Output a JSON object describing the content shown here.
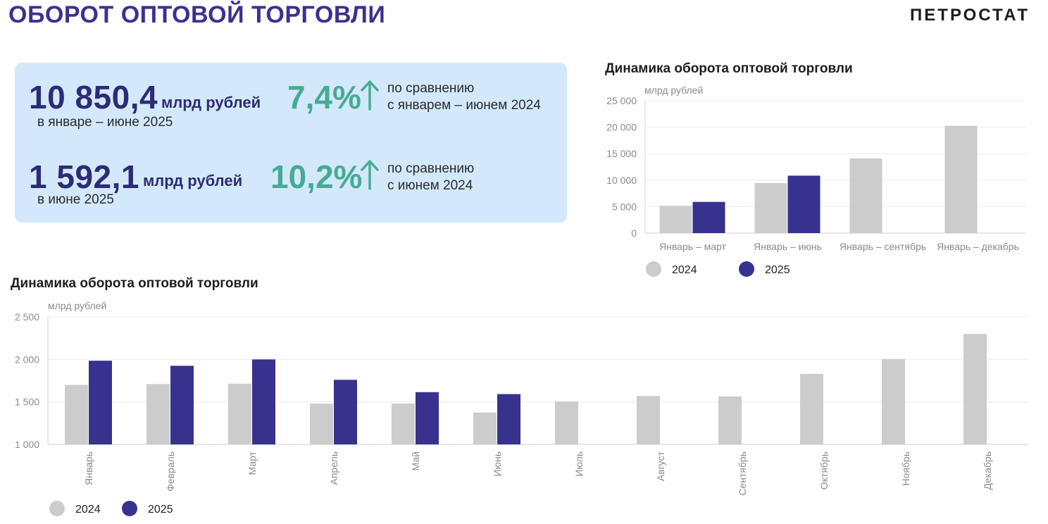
{
  "header": {
    "title": "ОБОРОТ ОПТОВОЙ ТОРГОВЛИ",
    "brand": "ПЕТРОСТАТ"
  },
  "kpi": [
    {
      "value": "10 850,4",
      "unit": "млрд рублей",
      "period": "в январе – июне 2025",
      "change": "7,4%",
      "direction": "up",
      "compare_line1": "по сравнению",
      "compare_line2": "с январем – июнем 2024"
    },
    {
      "value": "1 592,1",
      "unit": "млрд рублей",
      "period": "в июне 2025",
      "change": "10,2%",
      "direction": "up",
      "compare_line1": "по сравнению",
      "compare_line2": "с июнем 2024"
    }
  ],
  "colors": {
    "accent": "#3b3192",
    "series2024": "#cccccc",
    "series2025": "#38328f",
    "positive": "#46ab94",
    "card": "#d4e8fb"
  },
  "chart_data": [
    {
      "type": "bar",
      "title": "Динамика оборота оптовой торговли",
      "ylabel": "млрд рублей",
      "categories": [
        "Январь – март",
        "Январь – июнь",
        "Январь – сентябрь",
        "Январь – декабрь"
      ],
      "series": [
        {
          "name": "2024",
          "values": [
            5150,
            9450,
            14100,
            20250
          ]
        },
        {
          "name": "2025",
          "values": [
            5900,
            10850.4,
            null,
            null
          ]
        }
      ],
      "ylim": [
        0,
        25000
      ],
      "yticks": [
        "0",
        "5 000",
        "10 000",
        "15 000",
        "20 000",
        "25 000"
      ],
      "legend": "bottom-left",
      "grid": true
    },
    {
      "type": "bar",
      "title": "Динамика оборота оптовой торговли",
      "ylabel": "млрд рублей",
      "categories": [
        "Январь",
        "Февраль",
        "Март",
        "Апрель",
        "Май",
        "Июнь",
        "Июль",
        "Август",
        "Сентябрь",
        "Октябрь",
        "Ноябрь",
        "Декабрь"
      ],
      "series": [
        {
          "name": "2024",
          "values": [
            1700,
            1710,
            1715,
            1480,
            1480,
            1375,
            1505,
            1570,
            1565,
            1830,
            2005,
            2300
          ]
        },
        {
          "name": "2025",
          "values": [
            1985,
            1925,
            2000,
            1760,
            1615,
            1592.1,
            null,
            null,
            null,
            null,
            null,
            null
          ]
        }
      ],
      "ylim": [
        1000,
        2500
      ],
      "yticks": [
        "1 000",
        "1 500",
        "2 000",
        "2 500"
      ],
      "legend": "bottom-left",
      "grid": true
    }
  ]
}
